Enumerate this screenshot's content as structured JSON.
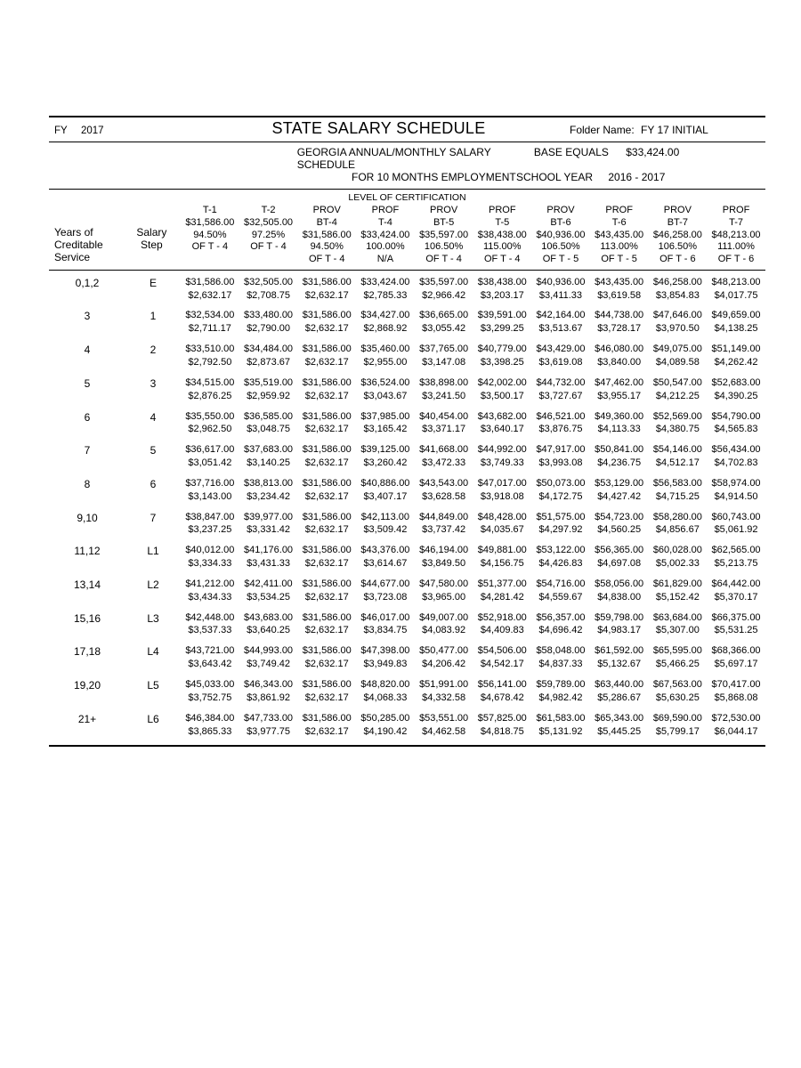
{
  "meta": {
    "fy_label": "FY",
    "fy_value": "2017",
    "title": "STATE SALARY SCHEDULE",
    "folder_label": "Folder Name:",
    "folder_value": "FY 17 INITIAL",
    "subtitle1": "GEORGIA  ANNUAL/MONTHLY SALARY SCHEDULE",
    "subtitle2": "FOR 10 MONTHS EMPLOYMENT",
    "base_label": "BASE EQUALS",
    "base_value": "$33,424.00",
    "schoolyear_label": "SCHOOL YEAR",
    "schoolyear_value": "2016 - 2017",
    "cert_title": "LEVEL OF CERTIFICATION",
    "yos_label_l1": "Years of",
    "yos_label_l2": "Creditable",
    "yos_label_l3": "Service",
    "step_label_l1": "Salary",
    "step_label_l2": "Step",
    "font_family": "Arial",
    "text_color": "#000000",
    "background_color": "#ffffff",
    "border_color": "#000000"
  },
  "levels": [
    {
      "line1": "",
      "line2": "T-1",
      "base": "$31,586.00",
      "pct": "94.50%",
      "of": "OF T - 4"
    },
    {
      "line1": "",
      "line2": "T-2",
      "base": "$32,505.00",
      "pct": "97.25%",
      "of": "OF T - 4"
    },
    {
      "line1": "PROV",
      "line2": "BT-4",
      "base": "$31,586.00",
      "pct": "94.50%",
      "of": "OF T - 4"
    },
    {
      "line1": "PROF",
      "line2": "T-4",
      "base": "$33,424.00",
      "pct": "100.00%",
      "of": "N/A"
    },
    {
      "line1": "PROV",
      "line2": "BT-5",
      "base": "$35,597.00",
      "pct": "106.50%",
      "of": "OF T - 4"
    },
    {
      "line1": "PROF",
      "line2": "T-5",
      "base": "$38,438.00",
      "pct": "115.00%",
      "of": "OF T - 4"
    },
    {
      "line1": "PROV",
      "line2": "BT-6",
      "base": "$40,936.00",
      "pct": "106.50%",
      "of": "OF T - 5"
    },
    {
      "line1": "PROF",
      "line2": "T-6",
      "base": "$43,435.00",
      "pct": "113.00%",
      "of": "OF T - 5"
    },
    {
      "line1": "PROV",
      "line2": "BT-7",
      "base": "$46,258.00",
      "pct": "106.50%",
      "of": "OF T - 6"
    },
    {
      "line1": "PROF",
      "line2": "T-7",
      "base": "$48,213.00",
      "pct": "111.00%",
      "of": "OF T - 6"
    }
  ],
  "rows": [
    {
      "yos": "0,1,2",
      "step": "E",
      "cells": [
        [
          "$31,586.00",
          "$2,632.17"
        ],
        [
          "$32,505.00",
          "$2,708.75"
        ],
        [
          "$31,586.00",
          "$2,632.17"
        ],
        [
          "$33,424.00",
          "$2,785.33"
        ],
        [
          "$35,597.00",
          "$2,966.42"
        ],
        [
          "$38,438.00",
          "$3,203.17"
        ],
        [
          "$40,936.00",
          "$3,411.33"
        ],
        [
          "$43,435.00",
          "$3,619.58"
        ],
        [
          "$46,258.00",
          "$3,854.83"
        ],
        [
          "$48,213.00",
          "$4,017.75"
        ]
      ]
    },
    {
      "yos": "3",
      "step": "1",
      "cells": [
        [
          "$32,534.00",
          "$2,711.17"
        ],
        [
          "$33,480.00",
          "$2,790.00"
        ],
        [
          "$31,586.00",
          "$2,632.17"
        ],
        [
          "$34,427.00",
          "$2,868.92"
        ],
        [
          "$36,665.00",
          "$3,055.42"
        ],
        [
          "$39,591.00",
          "$3,299.25"
        ],
        [
          "$42,164.00",
          "$3,513.67"
        ],
        [
          "$44,738.00",
          "$3,728.17"
        ],
        [
          "$47,646.00",
          "$3,970.50"
        ],
        [
          "$49,659.00",
          "$4,138.25"
        ]
      ]
    },
    {
      "yos": "4",
      "step": "2",
      "cells": [
        [
          "$33,510.00",
          "$2,792.50"
        ],
        [
          "$34,484.00",
          "$2,873.67"
        ],
        [
          "$31,586.00",
          "$2,632.17"
        ],
        [
          "$35,460.00",
          "$2,955.00"
        ],
        [
          "$37,765.00",
          "$3,147.08"
        ],
        [
          "$40,779.00",
          "$3,398.25"
        ],
        [
          "$43,429.00",
          "$3,619.08"
        ],
        [
          "$46,080.00",
          "$3,840.00"
        ],
        [
          "$49,075.00",
          "$4,089.58"
        ],
        [
          "$51,149.00",
          "$4,262.42"
        ]
      ]
    },
    {
      "yos": "5",
      "step": "3",
      "cells": [
        [
          "$34,515.00",
          "$2,876.25"
        ],
        [
          "$35,519.00",
          "$2,959.92"
        ],
        [
          "$31,586.00",
          "$2,632.17"
        ],
        [
          "$36,524.00",
          "$3,043.67"
        ],
        [
          "$38,898.00",
          "$3,241.50"
        ],
        [
          "$42,002.00",
          "$3,500.17"
        ],
        [
          "$44,732.00",
          "$3,727.67"
        ],
        [
          "$47,462.00",
          "$3,955.17"
        ],
        [
          "$50,547.00",
          "$4,212.25"
        ],
        [
          "$52,683.00",
          "$4,390.25"
        ]
      ]
    },
    {
      "yos": "6",
      "step": "4",
      "cells": [
        [
          "$35,550.00",
          "$2,962.50"
        ],
        [
          "$36,585.00",
          "$3,048.75"
        ],
        [
          "$31,586.00",
          "$2,632.17"
        ],
        [
          "$37,985.00",
          "$3,165.42"
        ],
        [
          "$40,454.00",
          "$3,371.17"
        ],
        [
          "$43,682.00",
          "$3,640.17"
        ],
        [
          "$46,521.00",
          "$3,876.75"
        ],
        [
          "$49,360.00",
          "$4,113.33"
        ],
        [
          "$52,569.00",
          "$4,380.75"
        ],
        [
          "$54,790.00",
          "$4,565.83"
        ]
      ]
    },
    {
      "yos": "7",
      "step": "5",
      "cells": [
        [
          "$36,617.00",
          "$3,051.42"
        ],
        [
          "$37,683.00",
          "$3,140.25"
        ],
        [
          "$31,586.00",
          "$2,632.17"
        ],
        [
          "$39,125.00",
          "$3,260.42"
        ],
        [
          "$41,668.00",
          "$3,472.33"
        ],
        [
          "$44,992.00",
          "$3,749.33"
        ],
        [
          "$47,917.00",
          "$3,993.08"
        ],
        [
          "$50,841.00",
          "$4,236.75"
        ],
        [
          "$54,146.00",
          "$4,512.17"
        ],
        [
          "$56,434.00",
          "$4,702.83"
        ]
      ]
    },
    {
      "yos": "8",
      "step": "6",
      "cells": [
        [
          "$37,716.00",
          "$3,143.00"
        ],
        [
          "$38,813.00",
          "$3,234.42"
        ],
        [
          "$31,586.00",
          "$2,632.17"
        ],
        [
          "$40,886.00",
          "$3,407.17"
        ],
        [
          "$43,543.00",
          "$3,628.58"
        ],
        [
          "$47,017.00",
          "$3,918.08"
        ],
        [
          "$50,073.00",
          "$4,172.75"
        ],
        [
          "$53,129.00",
          "$4,427.42"
        ],
        [
          "$56,583.00",
          "$4,715.25"
        ],
        [
          "$58,974.00",
          "$4,914.50"
        ]
      ]
    },
    {
      "yos": "9,10",
      "step": "7",
      "cells": [
        [
          "$38,847.00",
          "$3,237.25"
        ],
        [
          "$39,977.00",
          "$3,331.42"
        ],
        [
          "$31,586.00",
          "$2,632.17"
        ],
        [
          "$42,113.00",
          "$3,509.42"
        ],
        [
          "$44,849.00",
          "$3,737.42"
        ],
        [
          "$48,428.00",
          "$4,035.67"
        ],
        [
          "$51,575.00",
          "$4,297.92"
        ],
        [
          "$54,723.00",
          "$4,560.25"
        ],
        [
          "$58,280.00",
          "$4,856.67"
        ],
        [
          "$60,743.00",
          "$5,061.92"
        ]
      ]
    },
    {
      "yos": "11,12",
      "step": "L1",
      "cells": [
        [
          "$40,012.00",
          "$3,334.33"
        ],
        [
          "$41,176.00",
          "$3,431.33"
        ],
        [
          "$31,586.00",
          "$2,632.17"
        ],
        [
          "$43,376.00",
          "$3,614.67"
        ],
        [
          "$46,194.00",
          "$3,849.50"
        ],
        [
          "$49,881.00",
          "$4,156.75"
        ],
        [
          "$53,122.00",
          "$4,426.83"
        ],
        [
          "$56,365.00",
          "$4,697.08"
        ],
        [
          "$60,028.00",
          "$5,002.33"
        ],
        [
          "$62,565.00",
          "$5,213.75"
        ]
      ]
    },
    {
      "yos": "13,14",
      "step": "L2",
      "cells": [
        [
          "$41,212.00",
          "$3,434.33"
        ],
        [
          "$42,411.00",
          "$3,534.25"
        ],
        [
          "$31,586.00",
          "$2,632.17"
        ],
        [
          "$44,677.00",
          "$3,723.08"
        ],
        [
          "$47,580.00",
          "$3,965.00"
        ],
        [
          "$51,377.00",
          "$4,281.42"
        ],
        [
          "$54,716.00",
          "$4,559.67"
        ],
        [
          "$58,056.00",
          "$4,838.00"
        ],
        [
          "$61,829.00",
          "$5,152.42"
        ],
        [
          "$64,442.00",
          "$5,370.17"
        ]
      ]
    },
    {
      "yos": "15,16",
      "step": "L3",
      "cells": [
        [
          "$42,448.00",
          "$3,537.33"
        ],
        [
          "$43,683.00",
          "$3,640.25"
        ],
        [
          "$31,586.00",
          "$2,632.17"
        ],
        [
          "$46,017.00",
          "$3,834.75"
        ],
        [
          "$49,007.00",
          "$4,083.92"
        ],
        [
          "$52,918.00",
          "$4,409.83"
        ],
        [
          "$56,357.00",
          "$4,696.42"
        ],
        [
          "$59,798.00",
          "$4,983.17"
        ],
        [
          "$63,684.00",
          "$5,307.00"
        ],
        [
          "$66,375.00",
          "$5,531.25"
        ]
      ]
    },
    {
      "yos": "17,18",
      "step": "L4",
      "cells": [
        [
          "$43,721.00",
          "$3,643.42"
        ],
        [
          "$44,993.00",
          "$3,749.42"
        ],
        [
          "$31,586.00",
          "$2,632.17"
        ],
        [
          "$47,398.00",
          "$3,949.83"
        ],
        [
          "$50,477.00",
          "$4,206.42"
        ],
        [
          "$54,506.00",
          "$4,542.17"
        ],
        [
          "$58,048.00",
          "$4,837.33"
        ],
        [
          "$61,592.00",
          "$5,132.67"
        ],
        [
          "$65,595.00",
          "$5,466.25"
        ],
        [
          "$68,366.00",
          "$5,697.17"
        ]
      ]
    },
    {
      "yos": "19,20",
      "step": "L5",
      "cells": [
        [
          "$45,033.00",
          "$3,752.75"
        ],
        [
          "$46,343.00",
          "$3,861.92"
        ],
        [
          "$31,586.00",
          "$2,632.17"
        ],
        [
          "$48,820.00",
          "$4,068.33"
        ],
        [
          "$51,991.00",
          "$4,332.58"
        ],
        [
          "$56,141.00",
          "$4,678.42"
        ],
        [
          "$59,789.00",
          "$4,982.42"
        ],
        [
          "$63,440.00",
          "$5,286.67"
        ],
        [
          "$67,563.00",
          "$5,630.25"
        ],
        [
          "$70,417.00",
          "$5,868.08"
        ]
      ]
    },
    {
      "yos": "21+",
      "step": "L6",
      "cells": [
        [
          "$46,384.00",
          "$3,865.33"
        ],
        [
          "$47,733.00",
          "$3,977.75"
        ],
        [
          "$31,586.00",
          "$2,632.17"
        ],
        [
          "$50,285.00",
          "$4,190.42"
        ],
        [
          "$53,551.00",
          "$4,462.58"
        ],
        [
          "$57,825.00",
          "$4,818.75"
        ],
        [
          "$61,583.00",
          "$5,131.92"
        ],
        [
          "$65,343.00",
          "$5,445.25"
        ],
        [
          "$69,590.00",
          "$5,799.17"
        ],
        [
          "$72,530.00",
          "$6,044.17"
        ]
      ]
    }
  ]
}
